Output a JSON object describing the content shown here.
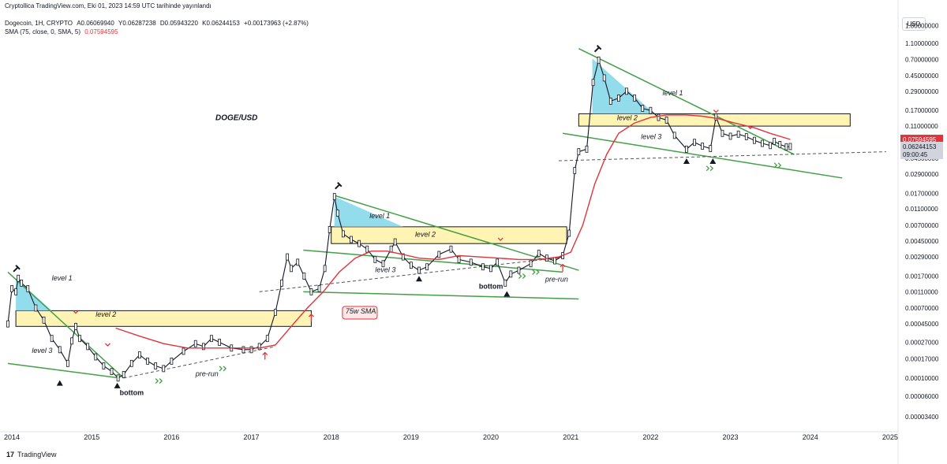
{
  "header": {
    "published": "Cryptollica TradingView.com, Eki 01, 2023 14:59 UTC tarihinde yayınlandı",
    "symbol": "Dogecoin, 1H, CRYPTO",
    "open": "A0.06069940",
    "high": "Y0.06287238",
    "low": "D0.05943220",
    "close": "K0.06244153",
    "change": "+0.00173963 (+2.87%)",
    "sma_label": "SMA (75, close, 0, SMA, 5)",
    "sma_value": "0.07594595"
  },
  "currency_button": "USD",
  "footer": {
    "brand": "TradingView"
  },
  "colors": {
    "candle": "#131722",
    "sma": "#e0343d",
    "trend": "#43a047",
    "zone_yellow": "#fff4b3",
    "zone_cyan": "#7fd6e8",
    "price_badge": "#e0343d",
    "countdown_badge": "#d1d4dc"
  },
  "chart_data": {
    "type": "line",
    "title": "DOGE/USD",
    "y_scale": "log",
    "ylim": [
      2.4e-05,
      1.9
    ],
    "xlim": [
      2013.95,
      2025.1
    ],
    "y_ticks": [
      {
        "label": "1.80000000",
        "value": 1.8
      },
      {
        "label": "1.10000000",
        "value": 1.1
      },
      {
        "label": "0.70000000",
        "value": 0.7
      },
      {
        "label": "0.45000000",
        "value": 0.45
      },
      {
        "label": "0.29000000",
        "value": 0.29
      },
      {
        "label": "0.17000000",
        "value": 0.17
      },
      {
        "label": "0.11000000",
        "value": 0.11
      },
      {
        "label": "0.04500000",
        "value": 0.045
      },
      {
        "label": "0.02900000",
        "value": 0.029
      },
      {
        "label": "0.01700000",
        "value": 0.017
      },
      {
        "label": "0.01100000",
        "value": 0.011
      },
      {
        "label": "0.00700000",
        "value": 0.007
      },
      {
        "label": "0.00450000",
        "value": 0.0045
      },
      {
        "label": "0.00290000",
        "value": 0.0029
      },
      {
        "label": "0.00170000",
        "value": 0.0017
      },
      {
        "label": "0.00110000",
        "value": 0.0011
      },
      {
        "label": "0.00070000",
        "value": 0.0007
      },
      {
        "label": "0.00045000",
        "value": 0.00045
      },
      {
        "label": "0.00027000",
        "value": 0.00027
      },
      {
        "label": "0.00017000",
        "value": 0.00017
      },
      {
        "label": "0.00010000",
        "value": 0.0001
      },
      {
        "label": "0.00006000",
        "value": 6e-05
      },
      {
        "label": "0.00003400",
        "value": 3.4e-05
      }
    ],
    "x_ticks": [
      {
        "label": "2014",
        "value": 2014
      },
      {
        "label": "2015",
        "value": 2015
      },
      {
        "label": "2016",
        "value": 2016
      },
      {
        "label": "2017",
        "value": 2017
      },
      {
        "label": "2018",
        "value": 2018
      },
      {
        "label": "2019",
        "value": 2019
      },
      {
        "label": "2020",
        "value": 2020
      },
      {
        "label": "2021",
        "value": 2021
      },
      {
        "label": "2022",
        "value": 2022
      },
      {
        "label": "2023",
        "value": 2023
      },
      {
        "label": "2024",
        "value": 2024
      },
      {
        "label": "2025",
        "value": 2025
      }
    ],
    "current_price": {
      "label": "0.07594595",
      "value": 0.0759
    },
    "last_price": {
      "label": "0.06244153",
      "value": 0.0624
    },
    "countdown": "09:00:45",
    "series": [
      {
        "name": "Dogecoin",
        "points": [
          [
            2013.95,
            0.00045
          ],
          [
            2014.0,
            0.0012
          ],
          [
            2014.05,
            0.0011
          ],
          [
            2014.08,
            0.0016
          ],
          [
            2014.12,
            0.0014
          ],
          [
            2014.2,
            0.0012
          ],
          [
            2014.3,
            0.0007
          ],
          [
            2014.4,
            0.0005
          ],
          [
            2014.5,
            0.0003
          ],
          [
            2014.6,
            0.00022
          ],
          [
            2014.7,
            0.00015
          ],
          [
            2014.75,
            0.00028
          ],
          [
            2014.8,
            0.00042
          ],
          [
            2014.85,
            0.0003
          ],
          [
            2014.95,
            0.00024
          ],
          [
            2015.05,
            0.00018
          ],
          [
            2015.15,
            0.00014
          ],
          [
            2015.25,
            0.00012
          ],
          [
            2015.33,
            0.0001
          ],
          [
            2015.4,
            0.00011
          ],
          [
            2015.5,
            0.00015
          ],
          [
            2015.6,
            0.00019
          ],
          [
            2015.7,
            0.00016
          ],
          [
            2015.8,
            0.00014
          ],
          [
            2015.9,
            0.00013
          ],
          [
            2016.0,
            0.00016
          ],
          [
            2016.15,
            0.00021
          ],
          [
            2016.3,
            0.00026
          ],
          [
            2016.4,
            0.00024
          ],
          [
            2016.5,
            0.0003
          ],
          [
            2016.6,
            0.00027
          ],
          [
            2016.75,
            0.00023
          ],
          [
            2016.9,
            0.00022
          ],
          [
            2017.0,
            0.00022
          ],
          [
            2017.1,
            0.00024
          ],
          [
            2017.2,
            0.0003
          ],
          [
            2017.3,
            0.00062
          ],
          [
            2017.38,
            0.0014
          ],
          [
            2017.45,
            0.0029
          ],
          [
            2017.5,
            0.0021
          ],
          [
            2017.58,
            0.0025
          ],
          [
            2017.66,
            0.0017
          ],
          [
            2017.75,
            0.0011
          ],
          [
            2017.85,
            0.0012
          ],
          [
            2017.92,
            0.0021
          ],
          [
            2017.98,
            0.0062
          ],
          [
            2018.04,
            0.0155
          ],
          [
            2018.08,
            0.0098
          ],
          [
            2018.15,
            0.0055
          ],
          [
            2018.25,
            0.0047
          ],
          [
            2018.35,
            0.0042
          ],
          [
            2018.45,
            0.0036
          ],
          [
            2018.55,
            0.0027
          ],
          [
            2018.65,
            0.0024
          ],
          [
            2018.75,
            0.0036
          ],
          [
            2018.8,
            0.0044
          ],
          [
            2018.9,
            0.0029
          ],
          [
            2019.0,
            0.0023
          ],
          [
            2019.1,
            0.002
          ],
          [
            2019.2,
            0.0022
          ],
          [
            2019.35,
            0.0031
          ],
          [
            2019.5,
            0.0036
          ],
          [
            2019.6,
            0.0027
          ],
          [
            2019.75,
            0.0025
          ],
          [
            2019.9,
            0.0022
          ],
          [
            2020.0,
            0.0021
          ],
          [
            2020.08,
            0.0025
          ],
          [
            2020.18,
            0.0014
          ],
          [
            2020.25,
            0.0018
          ],
          [
            2020.35,
            0.002
          ],
          [
            2020.5,
            0.0024
          ],
          [
            2020.6,
            0.0032
          ],
          [
            2020.7,
            0.0028
          ],
          [
            2020.8,
            0.0026
          ],
          [
            2020.9,
            0.003
          ],
          [
            2020.98,
            0.0056
          ],
          [
            2021.05,
            0.032
          ],
          [
            2021.1,
            0.054
          ],
          [
            2021.2,
            0.058
          ],
          [
            2021.28,
            0.37
          ],
          [
            2021.35,
            0.69
          ],
          [
            2021.42,
            0.42
          ],
          [
            2021.5,
            0.22
          ],
          [
            2021.6,
            0.24
          ],
          [
            2021.7,
            0.29
          ],
          [
            2021.8,
            0.24
          ],
          [
            2021.9,
            0.18
          ],
          [
            2022.0,
            0.17
          ],
          [
            2022.1,
            0.14
          ],
          [
            2022.2,
            0.13
          ],
          [
            2022.3,
            0.085
          ],
          [
            2022.45,
            0.058
          ],
          [
            2022.55,
            0.07
          ],
          [
            2022.65,
            0.063
          ],
          [
            2022.75,
            0.059
          ],
          [
            2022.82,
            0.142
          ],
          [
            2022.9,
            0.09
          ],
          [
            2023.0,
            0.083
          ],
          [
            2023.1,
            0.088
          ],
          [
            2023.2,
            0.082
          ],
          [
            2023.3,
            0.074
          ],
          [
            2023.4,
            0.068
          ],
          [
            2023.5,
            0.064
          ],
          [
            2023.55,
            0.072
          ],
          [
            2023.62,
            0.066
          ],
          [
            2023.7,
            0.062
          ],
          [
            2023.75,
            0.0624
          ]
        ]
      },
      {
        "name": "SMA (75, close, 0, SMA, 5)",
        "points": [
          [
            2015.3,
            0.0004
          ],
          [
            2015.6,
            0.00032
          ],
          [
            2015.9,
            0.00026
          ],
          [
            2016.2,
            0.00023
          ],
          [
            2016.5,
            0.00023
          ],
          [
            2016.8,
            0.00023
          ],
          [
            2017.1,
            0.00023
          ],
          [
            2017.3,
            0.00025
          ],
          [
            2017.5,
            0.00042
          ],
          [
            2017.7,
            0.0007
          ],
          [
            2017.9,
            0.0011
          ],
          [
            2018.1,
            0.0019
          ],
          [
            2018.3,
            0.0028
          ],
          [
            2018.5,
            0.0034
          ],
          [
            2018.7,
            0.0034
          ],
          [
            2018.9,
            0.0031
          ],
          [
            2019.1,
            0.0028
          ],
          [
            2019.35,
            0.0027
          ],
          [
            2019.6,
            0.003
          ],
          [
            2019.85,
            0.0029
          ],
          [
            2020.1,
            0.0028
          ],
          [
            2020.35,
            0.0027
          ],
          [
            2020.6,
            0.0027
          ],
          [
            2020.85,
            0.0029
          ],
          [
            2021.0,
            0.0033
          ],
          [
            2021.15,
            0.007
          ],
          [
            2021.3,
            0.022
          ],
          [
            2021.45,
            0.05
          ],
          [
            2021.6,
            0.09
          ],
          [
            2021.8,
            0.12
          ],
          [
            2022.0,
            0.14
          ],
          [
            2022.2,
            0.15
          ],
          [
            2022.45,
            0.15
          ],
          [
            2022.65,
            0.145
          ],
          [
            2022.85,
            0.135
          ],
          [
            2023.05,
            0.12
          ],
          [
            2023.3,
            0.105
          ],
          [
            2023.5,
            0.09
          ],
          [
            2023.75,
            0.076
          ]
        ]
      }
    ],
    "annotations": [
      {
        "text": "level 1",
        "x": 2014.5,
        "y": 0.0015
      },
      {
        "text": "level 2",
        "x": 2015.05,
        "y": 0.00055
      },
      {
        "text": "level 3",
        "x": 2014.25,
        "y": 0.0002
      },
      {
        "text": "bottom",
        "x": 2015.35,
        "y": 6.2e-05
      },
      {
        "text": "pre-run",
        "x": 2016.3,
        "y": 0.000105
      },
      {
        "text": "75w SMA",
        "x": 2018.18,
        "y": 0.0006
      },
      {
        "text": "level 1",
        "x": 2018.48,
        "y": 0.0085
      },
      {
        "text": "level 2",
        "x": 2019.05,
        "y": 0.0051
      },
      {
        "text": "level 3",
        "x": 2018.55,
        "y": 0.0019
      },
      {
        "text": "bottom",
        "x": 2019.85,
        "y": 0.0012
      },
      {
        "text": "pre-run",
        "x": 2020.68,
        "y": 0.00145
      },
      {
        "text": "level 1",
        "x": 2022.15,
        "y": 0.26
      },
      {
        "text": "level 2",
        "x": 2021.58,
        "y": 0.13
      },
      {
        "text": "level 3",
        "x": 2021.88,
        "y": 0.077
      }
    ],
    "grid": false,
    "legend": "top-left"
  }
}
